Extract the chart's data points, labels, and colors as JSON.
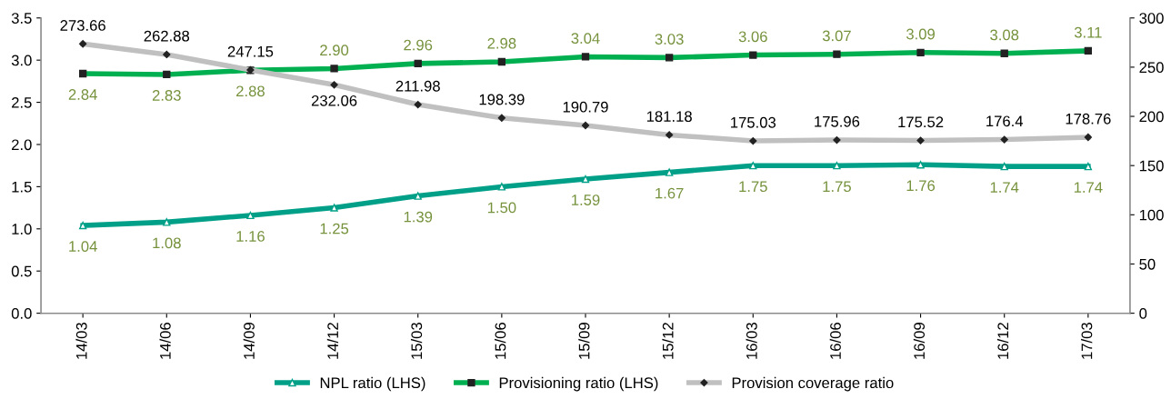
{
  "chart_data": {
    "type": "line",
    "categories": [
      "14/03",
      "14/06",
      "14/09",
      "14/12",
      "15/03",
      "15/06",
      "15/09",
      "15/12",
      "16/03",
      "16/06",
      "16/09",
      "16/12",
      "17/03"
    ],
    "series": [
      {
        "name": "NPL ratio (LHS)",
        "color": "#00a088",
        "marker": "triangle",
        "values": [
          1.04,
          1.08,
          1.16,
          1.25,
          1.39,
          1.5,
          1.59,
          1.67,
          1.75,
          1.75,
          1.76,
          1.74,
          1.74
        ],
        "value_labels": [
          "1.04",
          "1.08",
          "1.16",
          "1.25",
          "1.39",
          "1.50",
          "1.59",
          "1.67",
          "1.75",
          "1.75",
          "1.76",
          "1.74",
          "1.74"
        ]
      },
      {
        "name": "Provisioning ratio (LHS)",
        "color": "#00b050",
        "marker": "square",
        "values": [
          2.84,
          2.83,
          2.88,
          2.9,
          2.96,
          2.98,
          3.04,
          3.03,
          3.06,
          3.07,
          3.09,
          3.08,
          3.11
        ],
        "value_labels": [
          "2.84",
          "2.83",
          "2.88",
          "2.90",
          "2.96",
          "2.98",
          "3.04",
          "3.03",
          "3.06",
          "3.07",
          "3.09",
          "3.08",
          "3.11"
        ]
      },
      {
        "name": "Provision coverage ratio",
        "color": "#c0c0c0",
        "marker": "diamond",
        "axis": "y2",
        "values": [
          273.66,
          262.88,
          247.15,
          232.06,
          211.98,
          198.39,
          190.79,
          181.18,
          175.03,
          175.96,
          175.52,
          176.4,
          178.76
        ],
        "value_labels": [
          "273.66",
          "262.88",
          "247.15",
          "232.06",
          "211.98",
          "198.39",
          "190.79",
          "181.18",
          "175.03",
          "175.96",
          "175.52",
          "176.4",
          "178.76"
        ]
      }
    ],
    "ylim": [
      0,
      3.5
    ],
    "yticks": [
      {
        "value": 0,
        "label": "0.0"
      },
      {
        "value": 0.5,
        "label": "0.5"
      },
      {
        "value": 1,
        "label": "1.0"
      },
      {
        "value": 1.5,
        "label": "1.5"
      },
      {
        "value": 2,
        "label": "2.0"
      },
      {
        "value": 2.5,
        "label": "2.5"
      },
      {
        "value": 3,
        "label": "3.0"
      },
      {
        "value": 3.5,
        "label": "3.5"
      }
    ],
    "y2lim": [
      0,
      300
    ],
    "y2ticks": [
      0,
      50,
      100,
      150,
      200,
      250,
      300
    ],
    "grid": false,
    "legend": "bottom",
    "line_style": "solid"
  }
}
